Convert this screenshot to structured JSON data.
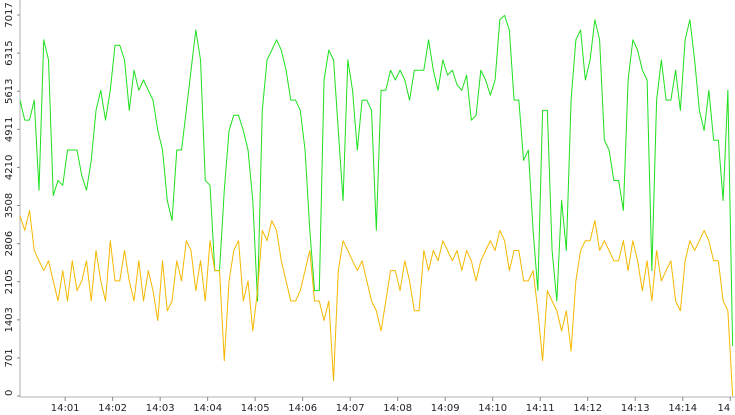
{
  "chart_data": {
    "type": "line",
    "x": [
      0.05,
      0.15,
      0.25,
      0.35,
      0.45,
      0.55,
      0.65,
      0.75,
      0.85,
      0.95,
      1.05,
      1.15,
      1.25,
      1.35,
      1.45,
      1.55,
      1.65,
      1.75,
      1.85,
      1.95,
      2.05,
      2.15,
      2.25,
      2.35,
      2.45,
      2.55,
      2.65,
      2.75,
      2.85,
      2.95,
      3.05,
      3.15,
      3.25,
      3.35,
      3.45,
      3.55,
      3.65,
      3.75,
      3.85,
      3.95,
      4.05,
      4.15,
      4.25,
      4.35,
      4.45,
      4.55,
      4.65,
      4.75,
      4.85,
      4.95,
      5.05,
      5.15,
      5.25,
      5.35,
      5.45,
      5.55,
      5.65,
      5.75,
      5.85,
      5.95,
      6.05,
      6.15,
      6.25,
      6.35,
      6.45,
      6.55,
      6.65,
      6.75,
      6.85,
      6.95,
      7.05,
      7.15,
      7.25,
      7.35,
      7.45,
      7.55,
      7.65,
      7.75,
      7.85,
      7.95,
      8.05,
      8.15,
      8.25,
      8.35,
      8.45,
      8.55,
      8.65,
      8.75,
      8.85,
      8.95,
      9.05,
      9.15,
      9.25,
      9.35,
      9.45,
      9.55,
      9.65,
      9.75,
      9.85,
      9.95,
      10.05,
      10.15,
      10.25,
      10.35,
      10.45,
      10.55,
      10.65,
      10.75,
      10.85,
      10.95,
      11.05,
      11.15,
      11.25,
      11.35,
      11.45,
      11.55,
      11.65,
      11.75,
      11.85,
      11.95,
      12.05,
      12.15,
      12.25,
      12.35,
      12.45,
      12.55,
      12.65,
      12.75,
      12.85,
      12.95,
      13.05,
      13.15,
      13.25,
      13.35,
      13.45,
      13.55,
      13.65,
      13.75,
      13.85,
      13.95,
      14.05,
      14.15,
      14.25,
      14.35,
      14.45,
      14.55,
      14.65,
      14.75,
      14.85,
      14.95,
      15.05
    ],
    "series": [
      {
        "color": "#1ee01e",
        "values": [
          5450,
          5080,
          5080,
          5450,
          3790,
          6560,
          6190,
          3690,
          3970,
          3880,
          4530,
          4530,
          4530,
          4060,
          3790,
          4340,
          5260,
          5630,
          5080,
          5630,
          6460,
          6460,
          6190,
          5260,
          6000,
          5630,
          5820,
          5630,
          5450,
          4890,
          4530,
          3600,
          3230,
          4530,
          4530,
          5260,
          6000,
          6740,
          6190,
          3970,
          3880,
          2310,
          2310,
          3790,
          4890,
          5170,
          5170,
          4890,
          4530,
          3600,
          1750,
          5260,
          6190,
          6370,
          6560,
          6370,
          6000,
          5450,
          5450,
          5260,
          4530,
          3050,
          1940,
          1940,
          5820,
          6370,
          6190,
          4890,
          3600,
          6190,
          5630,
          4530,
          5450,
          5450,
          5260,
          3050,
          5630,
          5630,
          6000,
          5820,
          6000,
          5820,
          5450,
          6000,
          6000,
          6000,
          6560,
          6000,
          5630,
          6190,
          5910,
          6000,
          5730,
          5630,
          5910,
          5080,
          5170,
          6000,
          5820,
          5540,
          5820,
          6930,
          7010,
          6740,
          5450,
          5450,
          4340,
          4530,
          3050,
          1940,
          5260,
          5260,
          2680,
          1750,
          3600,
          2680,
          5450,
          6560,
          6740,
          5820,
          6190,
          6930,
          6560,
          4710,
          4530,
          3970,
          3970,
          3420,
          5820,
          6560,
          6370,
          6000,
          5820,
          2310,
          5450,
          6190,
          5450,
          5450,
          6000,
          5260,
          6560,
          6930,
          6190,
          5260,
          4890,
          5630,
          4710,
          4710,
          3600,
          5630,
          920
        ]
      },
      {
        "color": "#f5b800",
        "values": [
          3320,
          3050,
          3420,
          2680,
          2490,
          2310,
          2490,
          2120,
          1750,
          2310,
          1750,
          2490,
          1940,
          2120,
          2490,
          1750,
          2680,
          2120,
          1750,
          2860,
          2120,
          2120,
          2680,
          2120,
          1750,
          2490,
          1750,
          2310,
          1940,
          1390,
          2490,
          1570,
          1750,
          2490,
          2120,
          2860,
          2680,
          1940,
          2490,
          1750,
          2860,
          2310,
          2310,
          650,
          2120,
          2680,
          2860,
          1750,
          2120,
          1200,
          1940,
          3050,
          2860,
          3230,
          3050,
          2490,
          2120,
          1750,
          1750,
          1940,
          2310,
          2680,
          1750,
          1750,
          1390,
          1750,
          280,
          2310,
          2860,
          2680,
          2490,
          2310,
          2490,
          2120,
          1750,
          1570,
          1200,
          1750,
          2310,
          2310,
          1940,
          2490,
          2120,
          1570,
          1570,
          2680,
          2310,
          2680,
          2490,
          2860,
          2680,
          2490,
          2680,
          2310,
          2680,
          2490,
          2120,
          2490,
          2680,
          2860,
          2680,
          3050,
          2860,
          2310,
          2680,
          2680,
          2120,
          2120,
          2310,
          1570,
          650,
          1940,
          1750,
          1570,
          1200,
          1570,
          830,
          2120,
          2680,
          2860,
          2860,
          3230,
          2680,
          2860,
          2680,
          2490,
          2490,
          2860,
          2310,
          2860,
          2490,
          1940,
          2490,
          1750,
          2680,
          2120,
          2310,
          2490,
          1750,
          1570,
          2490,
          2860,
          2680,
          2860,
          3050,
          2860,
          2490,
          2490,
          1750,
          1570,
          0
        ]
      }
    ],
    "ylim": [
      0,
      7017
    ],
    "yticks": [
      0,
      701,
      1403,
      2105,
      2806,
      3508,
      4210,
      4911,
      5613,
      6315,
      7017
    ],
    "xlim": [
      0.05,
      15.1
    ],
    "xticks": [
      {
        "value": 1,
        "label": "14:01"
      },
      {
        "value": 2,
        "label": "14:02"
      },
      {
        "value": 3,
        "label": "14:03"
      },
      {
        "value": 4,
        "label": "14:04"
      },
      {
        "value": 5,
        "label": "14:05"
      },
      {
        "value": 6,
        "label": "14:06"
      },
      {
        "value": 7,
        "label": "14:07"
      },
      {
        "value": 8,
        "label": "14:08"
      },
      {
        "value": 9,
        "label": "14:09"
      },
      {
        "value": 10,
        "label": "14:10"
      },
      {
        "value": 11,
        "label": "14:11"
      },
      {
        "value": 12,
        "label": "14:12"
      },
      {
        "value": 13,
        "label": "14:13"
      },
      {
        "value": 14,
        "label": "14:14"
      },
      {
        "value": 15,
        "label": "14"
      }
    ]
  }
}
